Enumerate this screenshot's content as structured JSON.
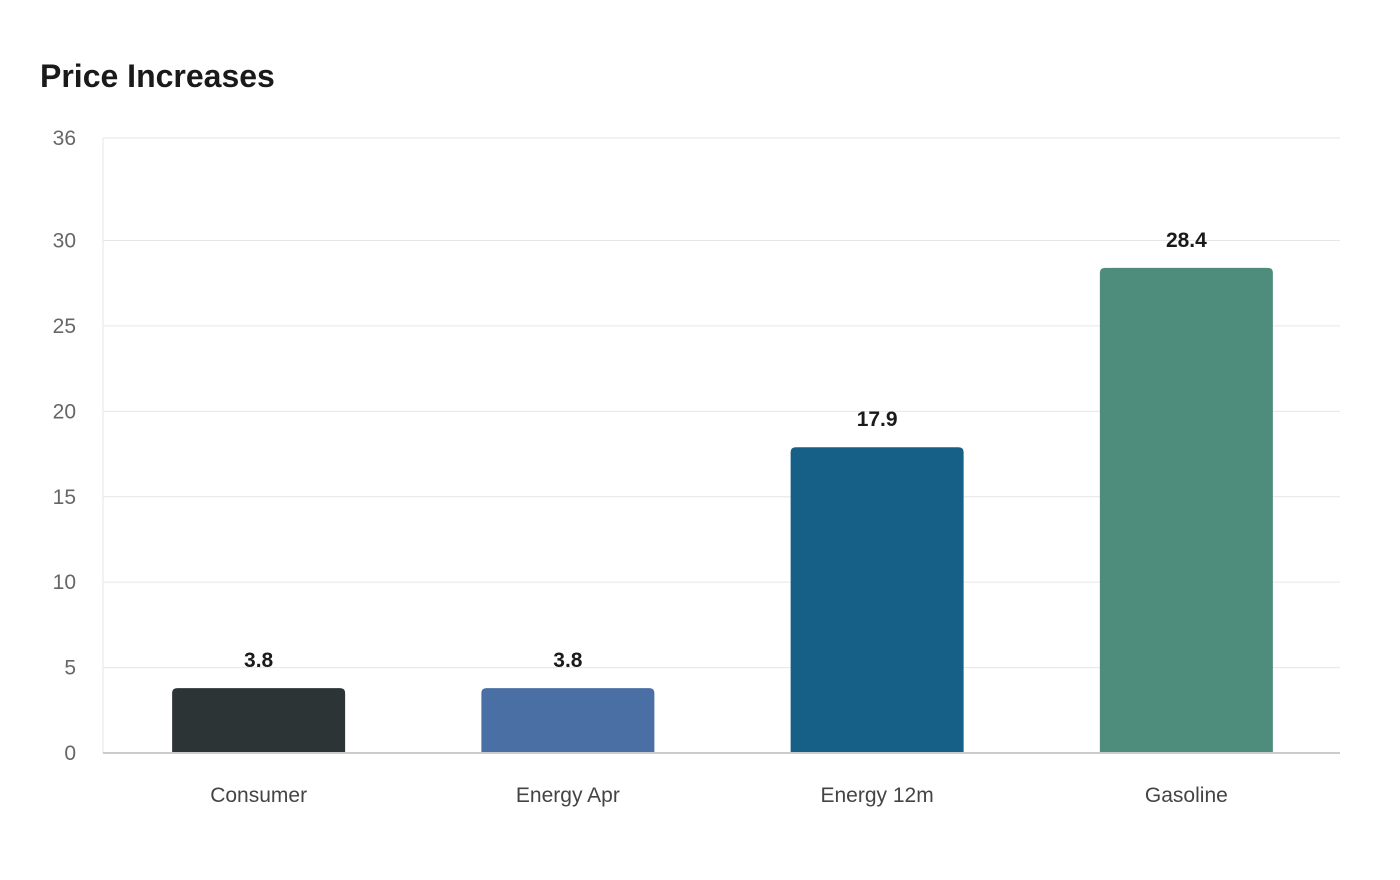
{
  "chart_data": {
    "type": "bar",
    "title": "Price Increases",
    "categories": [
      "Consumer",
      "Energy Apr",
      "Energy 12m",
      "Gasoline"
    ],
    "values": [
      3.8,
      3.8,
      17.9,
      28.4
    ],
    "value_labels": [
      "3.8",
      "3.8",
      "17.9",
      "28.4"
    ],
    "colors": [
      "#2d3436",
      "#4a6fa5",
      "#166088",
      "#4e8d7c"
    ],
    "ylim": [
      0,
      36
    ],
    "yticks": [
      0,
      5,
      10,
      15,
      20,
      25,
      30,
      36
    ],
    "xlabel": "",
    "ylabel": "",
    "grid": true,
    "legend": "none"
  }
}
